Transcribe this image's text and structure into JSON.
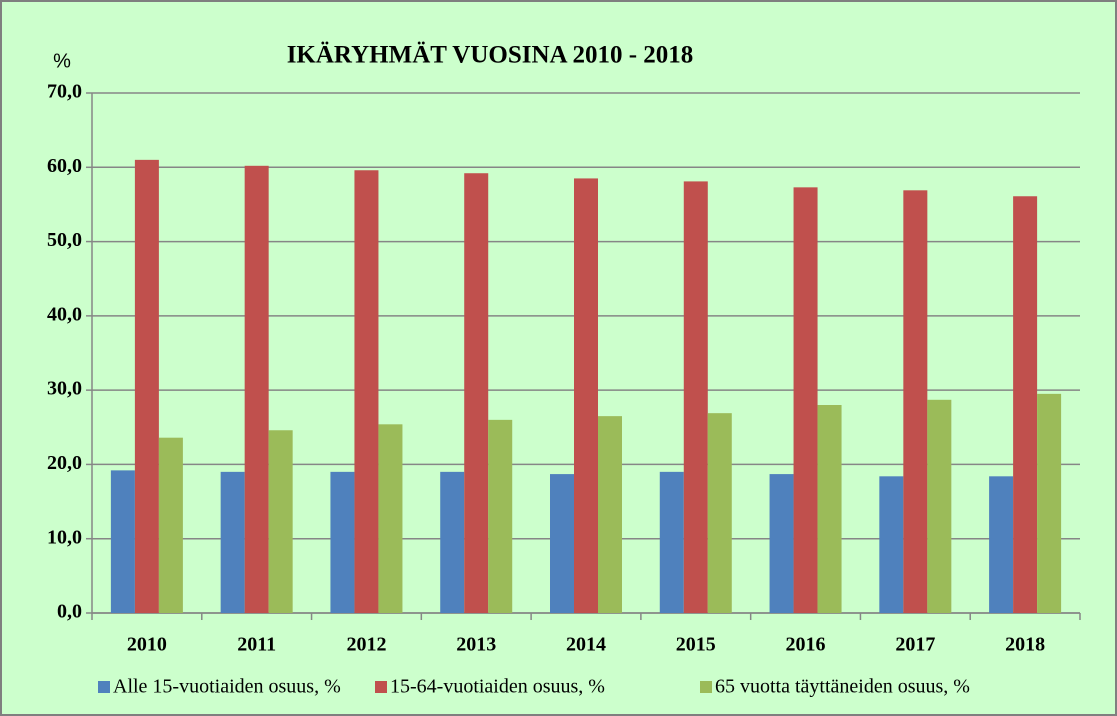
{
  "chart_data": {
    "type": "bar",
    "title": "IKÄRYHMÄT VUOSINA 2010 - 2018",
    "y_label": "%",
    "categories": [
      "2010",
      "2011",
      "2012",
      "2013",
      "2014",
      "2015",
      "2016",
      "2017",
      "2018"
    ],
    "series": [
      {
        "name": "Alle 15-vuotiaiden osuus, %",
        "color": "#4f81bd",
        "values": [
          19.2,
          19.0,
          19.0,
          19.0,
          18.7,
          19.0,
          18.7,
          18.4,
          18.4
        ]
      },
      {
        "name": "15-64-vuotiaiden osuus, %",
        "color": "#c0504d",
        "values": [
          61.0,
          60.2,
          59.6,
          59.2,
          58.5,
          58.1,
          57.3,
          56.9,
          56.1
        ]
      },
      {
        "name": "65 vuotta täyttäneiden osuus, %",
        "color": "#9bbb59",
        "values": [
          23.6,
          24.6,
          25.4,
          26.0,
          26.5,
          26.9,
          28.0,
          28.7,
          29.5
        ]
      }
    ],
    "ylim": [
      0,
      70
    ],
    "yticks": [
      {
        "value": 0,
        "label": "0,0"
      },
      {
        "value": 10,
        "label": "10,0"
      },
      {
        "value": 20,
        "label": "20,0"
      },
      {
        "value": 30,
        "label": "30,0"
      },
      {
        "value": 40,
        "label": "40,0"
      },
      {
        "value": 50,
        "label": "50,0"
      },
      {
        "value": 60,
        "label": "60,0"
      },
      {
        "value": 70,
        "label": "70,0"
      }
    ],
    "grid": true,
    "legend": "bottom"
  }
}
